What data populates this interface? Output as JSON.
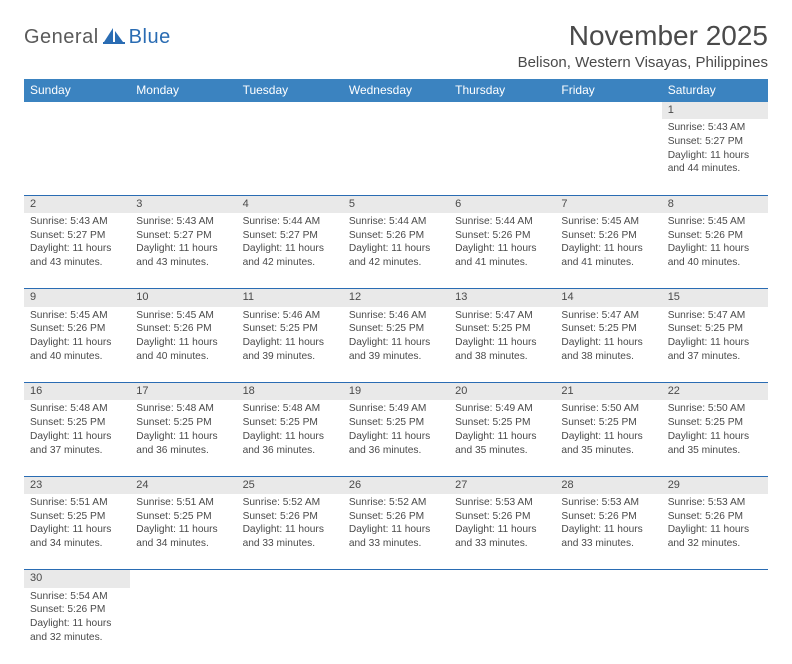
{
  "brand": {
    "part1": "General",
    "part2": "Blue"
  },
  "title": {
    "month": "November 2025",
    "location": "Belison, Western Visayas, Philippines"
  },
  "colors": {
    "header_bg": "#3b83c0",
    "header_text": "#ffffff",
    "daynum_bg": "#e9e9e9",
    "border": "#2a6cb3",
    "text": "#4a4a4a",
    "brand_blue": "#2a6cb3"
  },
  "weekdays": [
    "Sunday",
    "Monday",
    "Tuesday",
    "Wednesday",
    "Thursday",
    "Friday",
    "Saturday"
  ],
  "weeks": [
    [
      null,
      null,
      null,
      null,
      null,
      null,
      {
        "n": "1",
        "sr": "Sunrise: 5:43 AM",
        "ss": "Sunset: 5:27 PM",
        "dl": "Daylight: 11 hours and 44 minutes."
      }
    ],
    [
      {
        "n": "2",
        "sr": "Sunrise: 5:43 AM",
        "ss": "Sunset: 5:27 PM",
        "dl": "Daylight: 11 hours and 43 minutes."
      },
      {
        "n": "3",
        "sr": "Sunrise: 5:43 AM",
        "ss": "Sunset: 5:27 PM",
        "dl": "Daylight: 11 hours and 43 minutes."
      },
      {
        "n": "4",
        "sr": "Sunrise: 5:44 AM",
        "ss": "Sunset: 5:27 PM",
        "dl": "Daylight: 11 hours and 42 minutes."
      },
      {
        "n": "5",
        "sr": "Sunrise: 5:44 AM",
        "ss": "Sunset: 5:26 PM",
        "dl": "Daylight: 11 hours and 42 minutes."
      },
      {
        "n": "6",
        "sr": "Sunrise: 5:44 AM",
        "ss": "Sunset: 5:26 PM",
        "dl": "Daylight: 11 hours and 41 minutes."
      },
      {
        "n": "7",
        "sr": "Sunrise: 5:45 AM",
        "ss": "Sunset: 5:26 PM",
        "dl": "Daylight: 11 hours and 41 minutes."
      },
      {
        "n": "8",
        "sr": "Sunrise: 5:45 AM",
        "ss": "Sunset: 5:26 PM",
        "dl": "Daylight: 11 hours and 40 minutes."
      }
    ],
    [
      {
        "n": "9",
        "sr": "Sunrise: 5:45 AM",
        "ss": "Sunset: 5:26 PM",
        "dl": "Daylight: 11 hours and 40 minutes."
      },
      {
        "n": "10",
        "sr": "Sunrise: 5:45 AM",
        "ss": "Sunset: 5:26 PM",
        "dl": "Daylight: 11 hours and 40 minutes."
      },
      {
        "n": "11",
        "sr": "Sunrise: 5:46 AM",
        "ss": "Sunset: 5:25 PM",
        "dl": "Daylight: 11 hours and 39 minutes."
      },
      {
        "n": "12",
        "sr": "Sunrise: 5:46 AM",
        "ss": "Sunset: 5:25 PM",
        "dl": "Daylight: 11 hours and 39 minutes."
      },
      {
        "n": "13",
        "sr": "Sunrise: 5:47 AM",
        "ss": "Sunset: 5:25 PM",
        "dl": "Daylight: 11 hours and 38 minutes."
      },
      {
        "n": "14",
        "sr": "Sunrise: 5:47 AM",
        "ss": "Sunset: 5:25 PM",
        "dl": "Daylight: 11 hours and 38 minutes."
      },
      {
        "n": "15",
        "sr": "Sunrise: 5:47 AM",
        "ss": "Sunset: 5:25 PM",
        "dl": "Daylight: 11 hours and 37 minutes."
      }
    ],
    [
      {
        "n": "16",
        "sr": "Sunrise: 5:48 AM",
        "ss": "Sunset: 5:25 PM",
        "dl": "Daylight: 11 hours and 37 minutes."
      },
      {
        "n": "17",
        "sr": "Sunrise: 5:48 AM",
        "ss": "Sunset: 5:25 PM",
        "dl": "Daylight: 11 hours and 36 minutes."
      },
      {
        "n": "18",
        "sr": "Sunrise: 5:48 AM",
        "ss": "Sunset: 5:25 PM",
        "dl": "Daylight: 11 hours and 36 minutes."
      },
      {
        "n": "19",
        "sr": "Sunrise: 5:49 AM",
        "ss": "Sunset: 5:25 PM",
        "dl": "Daylight: 11 hours and 36 minutes."
      },
      {
        "n": "20",
        "sr": "Sunrise: 5:49 AM",
        "ss": "Sunset: 5:25 PM",
        "dl": "Daylight: 11 hours and 35 minutes."
      },
      {
        "n": "21",
        "sr": "Sunrise: 5:50 AM",
        "ss": "Sunset: 5:25 PM",
        "dl": "Daylight: 11 hours and 35 minutes."
      },
      {
        "n": "22",
        "sr": "Sunrise: 5:50 AM",
        "ss": "Sunset: 5:25 PM",
        "dl": "Daylight: 11 hours and 35 minutes."
      }
    ],
    [
      {
        "n": "23",
        "sr": "Sunrise: 5:51 AM",
        "ss": "Sunset: 5:25 PM",
        "dl": "Daylight: 11 hours and 34 minutes."
      },
      {
        "n": "24",
        "sr": "Sunrise: 5:51 AM",
        "ss": "Sunset: 5:25 PM",
        "dl": "Daylight: 11 hours and 34 minutes."
      },
      {
        "n": "25",
        "sr": "Sunrise: 5:52 AM",
        "ss": "Sunset: 5:26 PM",
        "dl": "Daylight: 11 hours and 33 minutes."
      },
      {
        "n": "26",
        "sr": "Sunrise: 5:52 AM",
        "ss": "Sunset: 5:26 PM",
        "dl": "Daylight: 11 hours and 33 minutes."
      },
      {
        "n": "27",
        "sr": "Sunrise: 5:53 AM",
        "ss": "Sunset: 5:26 PM",
        "dl": "Daylight: 11 hours and 33 minutes."
      },
      {
        "n": "28",
        "sr": "Sunrise: 5:53 AM",
        "ss": "Sunset: 5:26 PM",
        "dl": "Daylight: 11 hours and 33 minutes."
      },
      {
        "n": "29",
        "sr": "Sunrise: 5:53 AM",
        "ss": "Sunset: 5:26 PM",
        "dl": "Daylight: 11 hours and 32 minutes."
      }
    ],
    [
      {
        "n": "30",
        "sr": "Sunrise: 5:54 AM",
        "ss": "Sunset: 5:26 PM",
        "dl": "Daylight: 11 hours and 32 minutes."
      },
      null,
      null,
      null,
      null,
      null,
      null
    ]
  ]
}
